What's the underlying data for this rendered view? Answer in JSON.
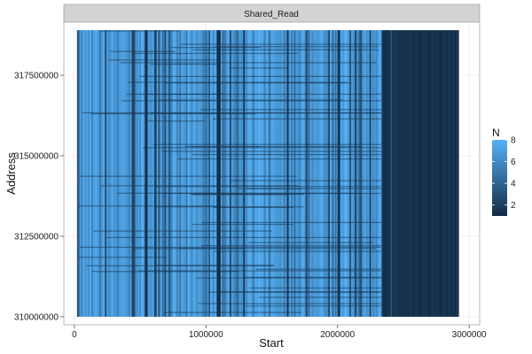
{
  "chart_data": {
    "type": "heatmap",
    "facet_label": "Shared_Read",
    "xlabel": "Start",
    "ylabel": "Address",
    "xlim": [
      -80000,
      3080000
    ],
    "ylim": [
      309750000,
      319150000
    ],
    "x_ticks": [
      0,
      1000000,
      2000000,
      3000000
    ],
    "x_tick_labels": [
      "0",
      "1000000",
      "2000000",
      "3000000"
    ],
    "y_ticks": [
      310000000,
      312500000,
      315000000,
      317500000
    ],
    "y_tick_labels": [
      "310000000",
      "312500000",
      "315000000",
      "317500000"
    ],
    "data_extent": {
      "x": [
        20000,
        2920000
      ],
      "y": [
        310000000,
        318900000
      ]
    },
    "color_scale": {
      "name": "N",
      "low": "#132b43",
      "high": "#56b1f7",
      "domain": [
        1,
        8
      ],
      "breaks": [
        2,
        4,
        6,
        8
      ],
      "break_labels": [
        "2",
        "4",
        "6",
        "8"
      ]
    },
    "summary": [
      {
        "x_from": 20000,
        "x_to": 2330000,
        "dominant_N": "high (6-8)"
      },
      {
        "x_from": 2330000,
        "x_to": 2920000,
        "dominant_N": "low (1-2)"
      }
    ],
    "grid": true,
    "legend_position": "right"
  }
}
